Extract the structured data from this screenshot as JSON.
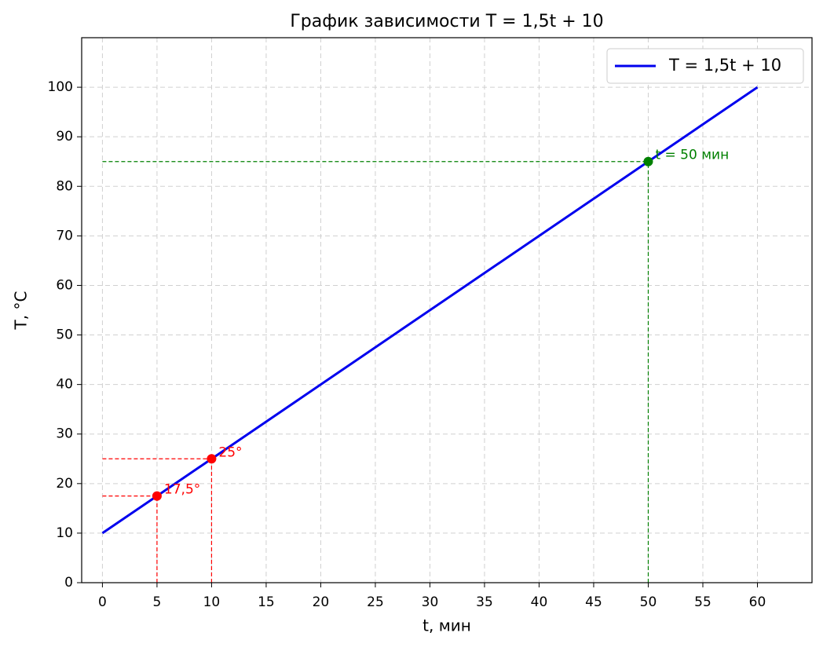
{
  "chart_data": {
    "type": "line",
    "title": "График зависимости T = 1,5t + 10",
    "x_label": "t, мин",
    "y_label": "T, °C",
    "series": [
      {
        "name": "T = 1,5t + 10",
        "color": "#0000ee",
        "x": [
          0,
          60
        ],
        "values": [
          10,
          100
        ]
      }
    ],
    "annotations": [
      {
        "x": 5,
        "y": 17.5,
        "label": "17,5°",
        "color": "#ff0000"
      },
      {
        "x": 10,
        "y": 25,
        "label": "25°",
        "color": "#ff0000"
      },
      {
        "x": 50,
        "y": 85,
        "label": "t = 50 мин",
        "color": "#008000"
      }
    ],
    "xlim": [
      -1.9,
      65
    ],
    "ylim": [
      0,
      110
    ],
    "xticks": [
      0,
      5,
      10,
      15,
      20,
      25,
      30,
      35,
      40,
      45,
      50,
      55,
      60
    ],
    "yticks": [
      0,
      10,
      20,
      30,
      40,
      50,
      60,
      70,
      80,
      90,
      100
    ],
    "grid": true,
    "legend": "upper right"
  }
}
